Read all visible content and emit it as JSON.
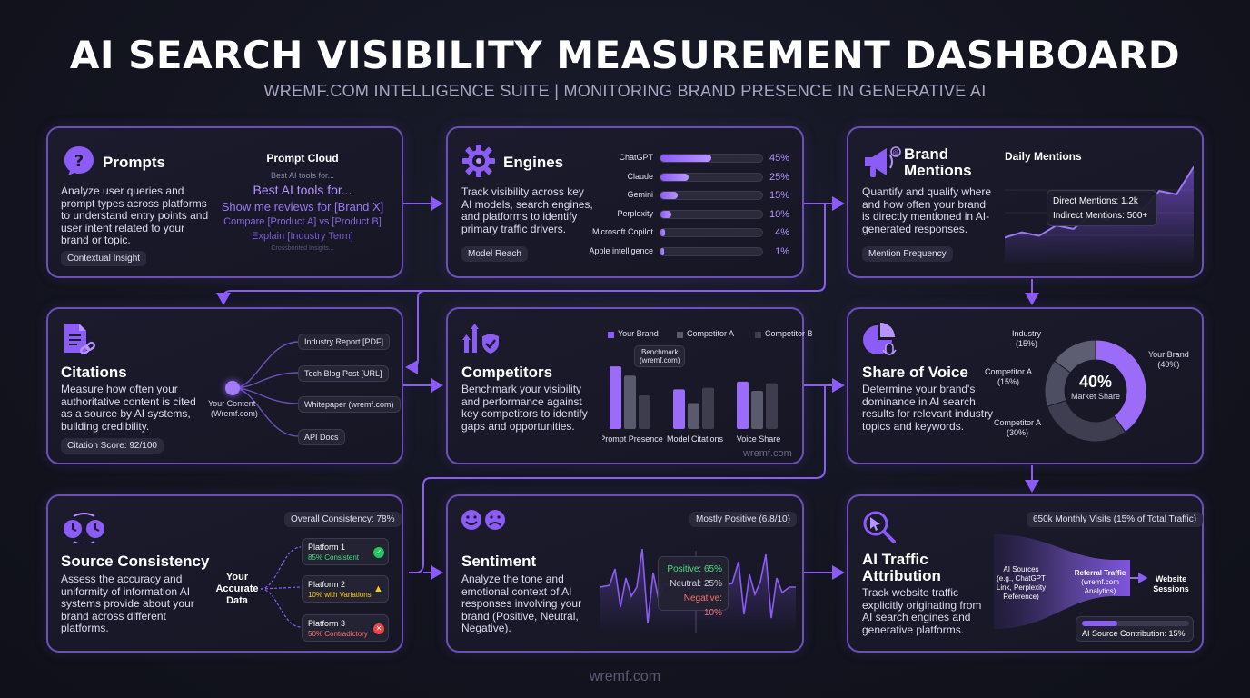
{
  "header": {
    "title": "AI SEARCH VISIBILITY MEASUREMENT DASHBOARD",
    "subtitle": "WREMF.COM INTELLIGENCE SUITE | MONITORING BRAND PRESENCE IN GENERATIVE AI"
  },
  "prompts": {
    "title": "Prompts",
    "description": "Analyze user queries and prompt types across platforms to understand entry points and user intent related to your brand or topic.",
    "tag": "Contextual Insight",
    "cloud_title": "Prompt Cloud",
    "cloud_items": [
      "Best AI tools for...",
      "Best AI tools for...",
      "Show me reviews for [Brand X]",
      "Compare [Product A] vs [Product B]",
      "Explain [Industry Term]",
      "Crossborited Insigits..."
    ]
  },
  "engines": {
    "title": "Engines",
    "description": "Track visibility across key AI models, search engines, and platforms to identify primary traffic drivers.",
    "tag": "Model Reach",
    "items": [
      {
        "name": "ChatGPT",
        "value": 45,
        "label": "45%"
      },
      {
        "name": "Claude",
        "value": 25,
        "label": "25%"
      },
      {
        "name": "Gemini",
        "value": 15,
        "label": "15%"
      },
      {
        "name": "Perplexity",
        "value": 10,
        "label": "10%"
      },
      {
        "name": "Microsoft Copilot",
        "value": 4,
        "label": "4%"
      },
      {
        "name": "Apple intelligence",
        "value": 1,
        "label": "1%"
      }
    ]
  },
  "brand_mentions": {
    "title_line1": "Brand",
    "title_line2": "Mentions",
    "description": "Quantify and qualify where and how often your brand is directly mentioned in AI-generated responses.",
    "tag": "Mention Frequency",
    "chart_title": "Daily Mentions",
    "direct": "Direct Mentions: 1.2k",
    "indirect": "Indirect Mentions: 500+"
  },
  "citations": {
    "title": "Citations",
    "description": "Measure how often your authoritative content is cited as a source by AI systems, building credibility.",
    "tag": "Citation Score: 92/100",
    "hub_label_1": "Your Content",
    "hub_label_2": "(Wremf.com)",
    "sources": [
      "Industry Report [PDF]",
      "Tech Blog Post [URL]",
      "Whitepaper (wremf.com)",
      "API Docs"
    ]
  },
  "competitors": {
    "title": "Competitors",
    "description": "Benchmark your visibility and performance against key competitors to identify gaps and opportunities.",
    "benchmark_line1": "Benchmark",
    "benchmark_line2": "(wremf.com)",
    "watermark": "wremf.com"
  },
  "share_of_voice": {
    "title": "Share of Voice",
    "description": "Determine your brand's dominance in AI search results for relevant industry topics and keywords.",
    "center_value": "40%",
    "center_label": "Market Share",
    "labels": {
      "industry": [
        "Industry",
        "(15%)"
      ],
      "competitor_a_top": [
        "Competitor A",
        "(15%)"
      ],
      "competitor_a_bottom": [
        "Competitor A",
        "(30%)"
      ],
      "your_brand": [
        "Your Brand",
        "(40%)"
      ]
    }
  },
  "source_consistency": {
    "title": "Source Consistency",
    "description": "Assess the accuracy and uniformity of information AI systems provide about your brand across different platforms.",
    "overall": "Overall Consistency: 78%",
    "center_line1": "Your",
    "center_line2": "Accurate",
    "center_line3": "Data",
    "platforms": [
      {
        "name": "Platform 1",
        "status": "85% Consistent",
        "color": "#4ade80"
      },
      {
        "name": "Platform 2",
        "status": "10% with Variations",
        "color": "#facc15"
      },
      {
        "name": "Platform 3",
        "status": "50% Contradictory",
        "color": "#f87171"
      }
    ]
  },
  "sentiment": {
    "title": "Sentiment",
    "description": "Analyze the tone and emotional context of AI responses involving your brand (Positive, Neutral, Negative).",
    "badge": "Mostly Positive (6.8/10)",
    "positive": "Positive: 65%",
    "neutral": "Neutral: 25%",
    "negative": "Negative: 10%"
  },
  "ai_traffic": {
    "title_line1": "AI Traffic",
    "title_line2": "Attribution",
    "description": "Track website traffic explicitly originating from AI search engines and generative platforms.",
    "badge": "650k Monthly Visits (15% of Total Traffic)",
    "source_label": [
      "AI Sources",
      "(e.g., ChatGPT",
      "Link, Perplexity",
      "Reference)"
    ],
    "referral_label": [
      "Referral Traffic",
      "(wremf.com",
      "Analytics)"
    ],
    "sessions_label": [
      "Website",
      "Sessions"
    ],
    "contribution": "AI Source Contribution: 15%",
    "contribution_value": 15
  },
  "footer": "wremf.com",
  "chart_data": [
    {
      "type": "bar",
      "title": "",
      "categories": [
        "Prompt Presence",
        "Model Citations",
        "Voice Share"
      ],
      "series": [
        {
          "name": "Your Brand",
          "values": [
            82,
            52,
            62
          ],
          "color": "#8b5cf6"
        },
        {
          "name": "Competitor A",
          "values": [
            70,
            34,
            50
          ],
          "color": "#5a5a6e"
        },
        {
          "name": "Competitor B",
          "values": [
            44,
            54,
            60
          ],
          "color": "#3d3d4e"
        }
      ],
      "ylim": [
        0,
        100
      ]
    },
    {
      "type": "pie",
      "title": "",
      "labels": [
        "Your Brand",
        "Competitor A",
        "Competitor A",
        "Industry"
      ],
      "values": [
        40,
        30,
        15,
        15
      ],
      "colors": [
        "#9b6cf7",
        "#3e3e50",
        "#4e4e62",
        "#5e5e72"
      ]
    },
    {
      "type": "line",
      "title": "Daily Mentions",
      "values": [
        8,
        14,
        10,
        22,
        18,
        34,
        28,
        52,
        40,
        62,
        58,
        90
      ]
    }
  ]
}
